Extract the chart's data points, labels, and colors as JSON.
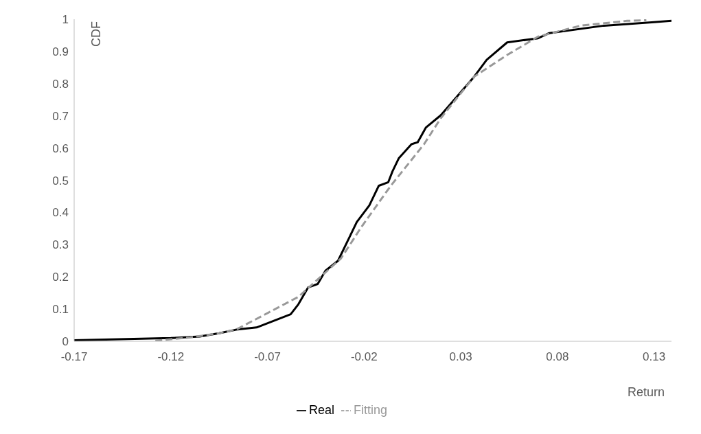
{
  "chart_data": {
    "type": "line",
    "xlabel": "Return",
    "ylabel": "CDF",
    "xlim": [
      -0.17,
      0.139
    ],
    "xticks": [
      -0.17,
      -0.12,
      -0.07,
      -0.02,
      0.03,
      0.08,
      0.13
    ],
    "ylim": [
      0,
      1
    ],
    "yticks": [
      0,
      0.1,
      0.2,
      0.3,
      0.4,
      0.5,
      0.6,
      0.7,
      0.8,
      0.9,
      1
    ],
    "grid": false,
    "legend": "bottom",
    "marker": "none",
    "series": [
      {
        "name": "Real",
        "color": "#000000",
        "line_style": "solid",
        "x": [
          -0.17,
          -0.12,
          -0.105,
          -0.095,
          -0.0863,
          -0.0756,
          -0.058,
          -0.054,
          -0.049,
          -0.044,
          -0.04,
          -0.0335,
          -0.028,
          -0.0238,
          -0.0173,
          -0.0124,
          -0.0075,
          -0.0053,
          -0.002,
          0.0045,
          0.0077,
          0.012,
          0.0197,
          0.037,
          0.0434,
          0.054,
          0.07,
          0.0758,
          0.104,
          0.13,
          0.139
        ],
        "values": [
          0.003,
          0.01,
          0.015,
          0.025,
          0.036,
          0.043,
          0.084,
          0.115,
          0.167,
          0.178,
          0.219,
          0.25,
          0.318,
          0.37,
          0.422,
          0.483,
          0.494,
          0.528,
          0.569,
          0.612,
          0.618,
          0.664,
          0.702,
          0.822,
          0.874,
          0.928,
          0.941,
          0.957,
          0.98,
          0.991,
          0.995
        ]
      },
      {
        "name": "Fitting",
        "color": "#999999",
        "line_style": "dashed",
        "x": [
          -0.128,
          -0.11,
          -0.095,
          -0.086,
          -0.054,
          -0.032,
          -0.0215,
          -0.0062,
          0.011,
          0.0197,
          0.037,
          0.054,
          0.07,
          0.092,
          0.116,
          0.126
        ],
        "values": [
          0.002,
          0.012,
          0.025,
          0.037,
          0.138,
          0.257,
          0.354,
          0.483,
          0.612,
          0.693,
          0.822,
          0.889,
          0.946,
          0.98,
          0.995,
          0.997
        ]
      }
    ]
  }
}
